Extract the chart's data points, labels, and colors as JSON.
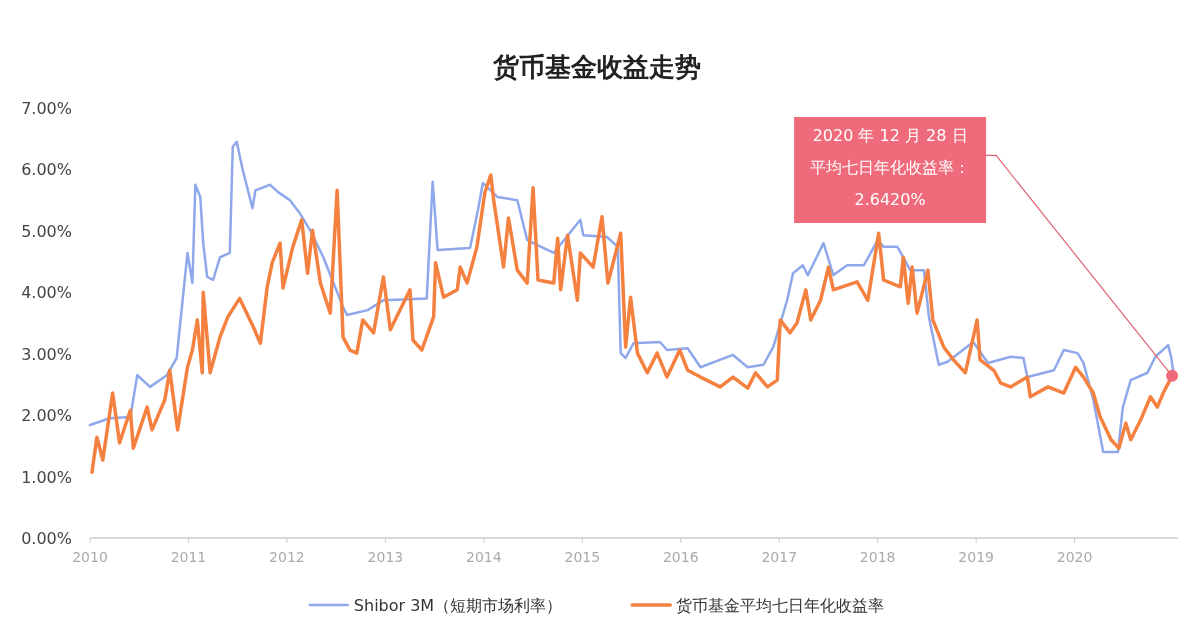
{
  "chart_data": {
    "type": "line",
    "title": "货币基金收益走势",
    "xlim": [
      2010,
      2021.05
    ],
    "xticks": [
      2010,
      2011,
      2012,
      2013,
      2014,
      2015,
      2016,
      2017,
      2018,
      2019,
      2020
    ],
    "ylim": [
      0,
      7
    ],
    "yticks": [
      {
        "value": 0,
        "label": "0.00%"
      },
      {
        "value": 1,
        "label": "1.00%"
      },
      {
        "value": 2,
        "label": "2.00%"
      },
      {
        "value": 3,
        "label": "3.00%"
      },
      {
        "value": 4,
        "label": "4.00%"
      },
      {
        "value": 5,
        "label": "5.00%"
      },
      {
        "value": 6,
        "label": "6.00%"
      },
      {
        "value": 7,
        "label": "7.00%"
      }
    ],
    "legend": "bottom",
    "series": [
      {
        "name": "Shibor 3M（短期市场利率）",
        "color": "#8fa8ec",
        "x": [
          2010.0,
          2010.2,
          2010.41,
          2010.48,
          2010.61,
          2010.78,
          2010.88,
          2010.99,
          2011.04,
          2011.07,
          2011.12,
          2011.15,
          2011.19,
          2011.25,
          2011.32,
          2011.42,
          2011.45,
          2011.49,
          2011.55,
          2011.65,
          2011.68,
          2011.83,
          2011.91,
          2012.03,
          2012.13,
          2012.24,
          2012.37,
          2012.57,
          2012.61,
          2012.82,
          2012.98,
          2013.42,
          2013.48,
          2013.53,
          2013.86,
          2013.94,
          2013.99,
          2014.14,
          2014.34,
          2014.44,
          2014.54,
          2014.71,
          2014.98,
          2015.01,
          2015.25,
          2015.36,
          2015.39,
          2015.44,
          2015.52,
          2015.79,
          2015.86,
          2016.07,
          2016.2,
          2016.53,
          2016.68,
          2016.84,
          2016.94,
          2017.08,
          2017.14,
          2017.24,
          2017.29,
          2017.45,
          2017.55,
          2017.69,
          2017.86,
          2018.0,
          2018.06,
          2018.2,
          2018.26,
          2018.33,
          2018.47,
          2018.52,
          2018.62,
          2018.71,
          2018.97,
          2019.12,
          2019.35,
          2019.48,
          2019.52,
          2019.79,
          2019.89,
          2020.03,
          2020.09,
          2020.19,
          2020.29,
          2020.44,
          2020.49,
          2020.57,
          2020.74,
          2020.82,
          2020.95,
          2020.98,
          2021.0
        ],
        "values": [
          1.84,
          1.95,
          1.97,
          2.65,
          2.46,
          2.65,
          2.93,
          4.64,
          4.15,
          5.75,
          5.55,
          4.8,
          4.25,
          4.2,
          4.57,
          4.64,
          6.37,
          6.45,
          6.0,
          5.37,
          5.66,
          5.75,
          5.63,
          5.5,
          5.29,
          5.0,
          4.57,
          3.76,
          3.63,
          3.71,
          3.87,
          3.9,
          5.8,
          4.69,
          4.72,
          5.34,
          5.78,
          5.55,
          5.5,
          4.85,
          4.77,
          4.64,
          5.18,
          4.93,
          4.9,
          4.74,
          3.01,
          2.93,
          3.17,
          3.19,
          3.06,
          3.09,
          2.78,
          2.98,
          2.78,
          2.82,
          3.11,
          3.87,
          4.31,
          4.44,
          4.28,
          4.8,
          4.28,
          4.44,
          4.44,
          4.85,
          4.74,
          4.74,
          4.57,
          4.36,
          4.36,
          3.6,
          2.82,
          2.87,
          3.19,
          2.85,
          2.95,
          2.93,
          2.62,
          2.73,
          3.06,
          3.01,
          2.85,
          2.25,
          1.4,
          1.4,
          2.13,
          2.57,
          2.69,
          2.95,
          3.14,
          2.95,
          2.73
        ]
      },
      {
        "name": "货币基金平均七日年化收益率",
        "color": "#f58140",
        "x": [
          2010.02,
          2010.07,
          2010.13,
          2010.23,
          2010.3,
          2010.41,
          2010.44,
          2010.58,
          2010.63,
          2010.76,
          2010.81,
          2010.89,
          2010.99,
          2011.04,
          2011.09,
          2011.14,
          2011.15,
          2011.22,
          2011.32,
          2011.4,
          2011.52,
          2011.66,
          2011.73,
          2011.8,
          2011.85,
          2011.93,
          2011.96,
          2012.06,
          2012.15,
          2012.21,
          2012.26,
          2012.34,
          2012.44,
          2012.51,
          2012.57,
          2012.64,
          2012.71,
          2012.77,
          2012.88,
          2012.98,
          2013.05,
          2013.25,
          2013.28,
          2013.37,
          2013.49,
          2013.51,
          2013.59,
          2013.73,
          2013.76,
          2013.83,
          2013.93,
          2014.01,
          2014.07,
          2014.1,
          2014.15,
          2014.2,
          2014.25,
          2014.34,
          2014.44,
          2014.5,
          2014.55,
          2014.71,
          2014.75,
          2014.78,
          2014.85,
          2014.95,
          2014.98,
          2015.11,
          2015.2,
          2015.26,
          2015.39,
          2015.44,
          2015.49,
          2015.56,
          2015.66,
          2015.76,
          2015.86,
          2015.99,
          2016.07,
          2016.2,
          2016.4,
          2016.53,
          2016.68,
          2016.76,
          2016.88,
          2016.98,
          2017.01,
          2017.11,
          2017.18,
          2017.27,
          2017.32,
          2017.42,
          2017.5,
          2017.55,
          2017.79,
          2017.9,
          2018.01,
          2018.06,
          2018.23,
          2018.26,
          2018.31,
          2018.35,
          2018.4,
          2018.51,
          2018.56,
          2018.67,
          2018.77,
          2018.89,
          2019.01,
          2019.04,
          2019.18,
          2019.25,
          2019.35,
          2019.52,
          2019.55,
          2019.73,
          2019.89,
          2020.01,
          2020.09,
          2020.19,
          2020.26,
          2020.37,
          2020.45,
          2020.52,
          2020.57,
          2020.67,
          2020.77,
          2020.84,
          2020.9,
          2020.99
        ],
        "values": [
          1.07,
          1.64,
          1.27,
          2.36,
          1.55,
          2.08,
          1.46,
          2.13,
          1.76,
          2.25,
          2.73,
          1.76,
          2.78,
          3.06,
          3.55,
          2.69,
          4.0,
          2.69,
          3.27,
          3.6,
          3.9,
          3.43,
          3.17,
          4.09,
          4.48,
          4.8,
          4.07,
          4.74,
          5.18,
          4.31,
          5.01,
          4.15,
          3.66,
          5.66,
          3.27,
          3.06,
          3.01,
          3.55,
          3.34,
          4.25,
          3.39,
          4.04,
          3.22,
          3.06,
          3.6,
          4.48,
          3.92,
          4.04,
          4.41,
          4.15,
          4.74,
          5.62,
          5.91,
          5.5,
          4.96,
          4.41,
          5.21,
          4.36,
          4.15,
          5.7,
          4.2,
          4.15,
          4.88,
          4.04,
          4.93,
          3.87,
          4.64,
          4.41,
          5.23,
          4.15,
          4.96,
          3.11,
          3.92,
          3.01,
          2.69,
          3.01,
          2.62,
          3.06,
          2.73,
          2.62,
          2.46,
          2.62,
          2.44,
          2.69,
          2.46,
          2.57,
          3.55,
          3.34,
          3.5,
          4.04,
          3.55,
          3.87,
          4.41,
          4.04,
          4.17,
          3.87,
          4.96,
          4.2,
          4.09,
          4.57,
          3.82,
          4.41,
          3.66,
          4.36,
          3.55,
          3.11,
          2.9,
          2.69,
          3.55,
          2.9,
          2.73,
          2.52,
          2.46,
          2.62,
          2.3,
          2.46,
          2.36,
          2.78,
          2.62,
          2.36,
          1.97,
          1.6,
          1.46,
          1.87,
          1.6,
          1.92,
          2.3,
          2.13,
          2.36,
          2.64
        ]
      }
    ],
    "annotations": [
      {
        "text": "2020 年 12 月 28 日平均七日年化收益率：2.6420%",
        "x": 2020.99,
        "y": 2.64
      }
    ]
  }
}
